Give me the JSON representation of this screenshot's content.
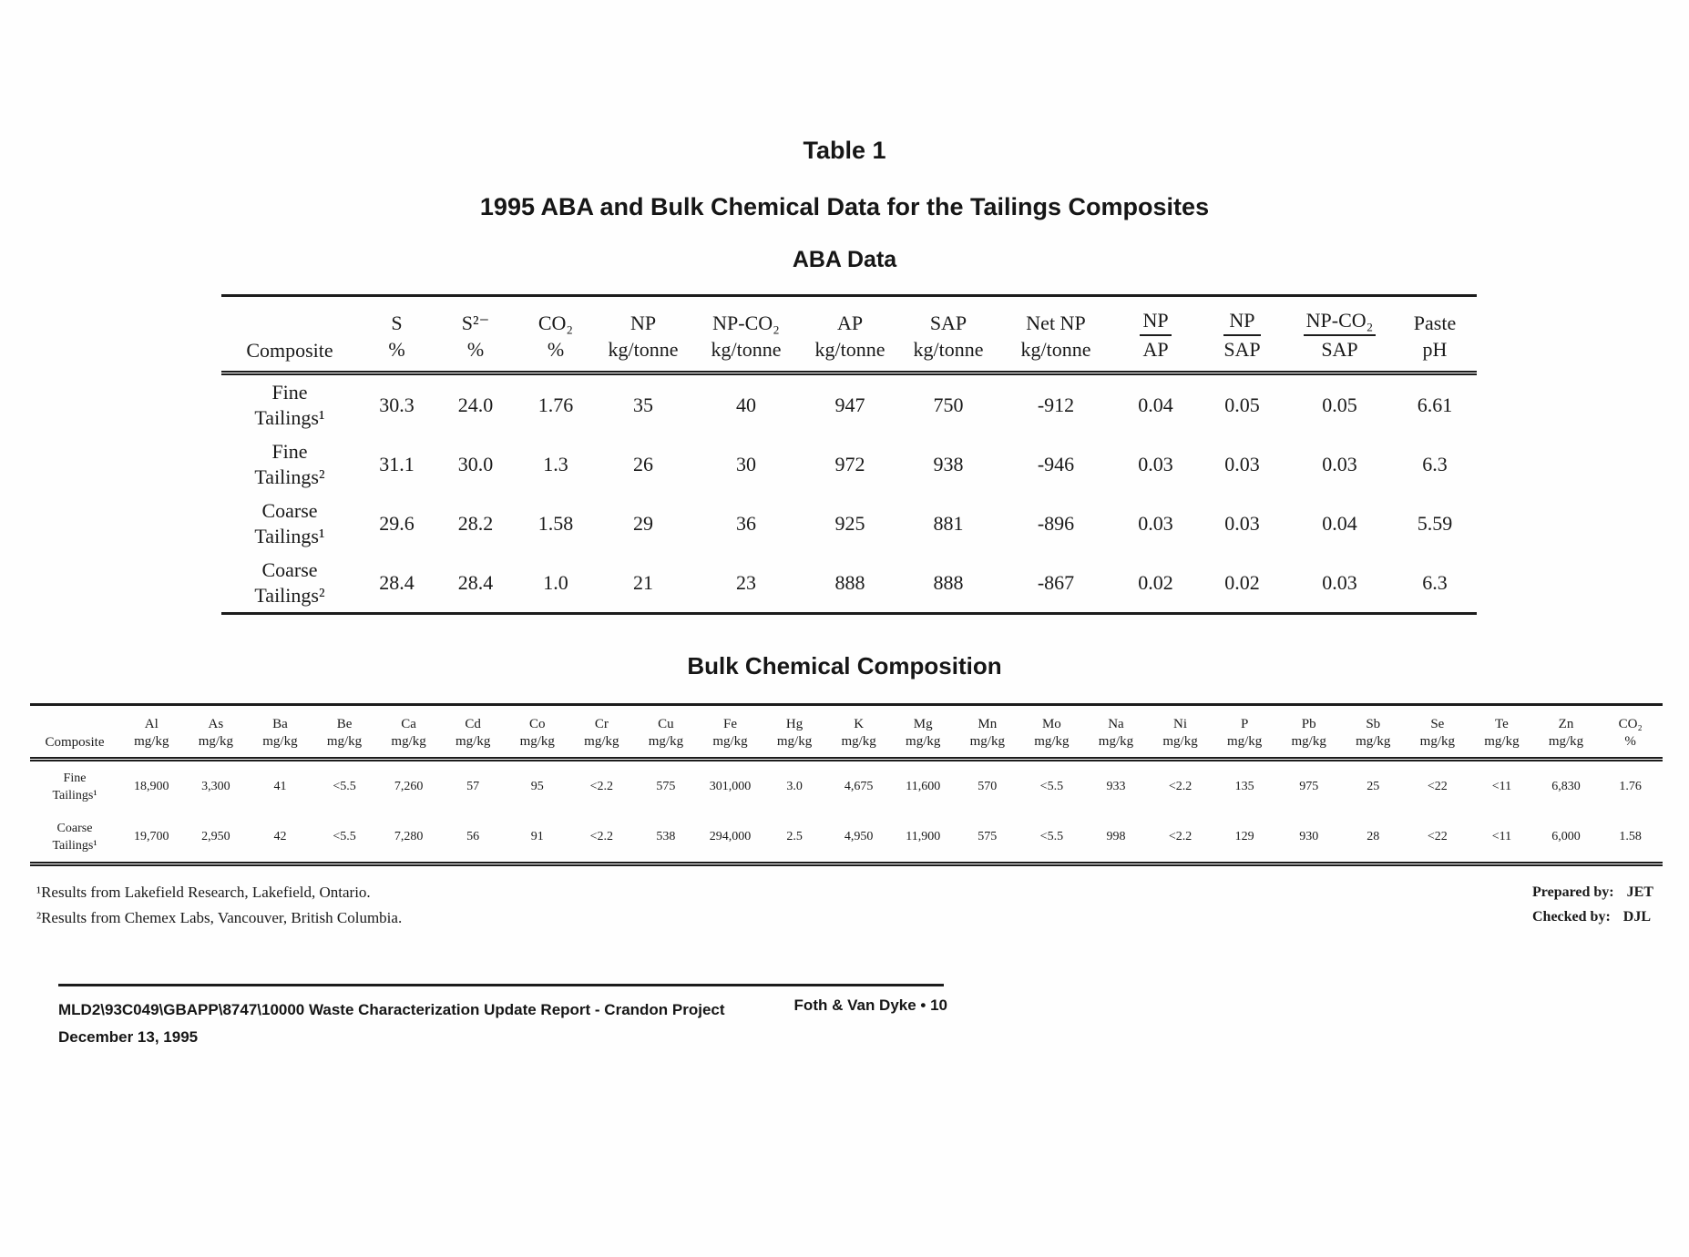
{
  "titles": {
    "table_label": "Table 1",
    "main": "1995 ABA and Bulk Chemical Data for the Tailings Composites",
    "aba_heading": "ABA Data",
    "bulk_heading": "Bulk Chemical Composition"
  },
  "aba_table": {
    "composite_header": "Composite",
    "columns": [
      {
        "name": "S",
        "unit": "%"
      },
      {
        "name": "S²⁻",
        "unit": "%"
      },
      {
        "name": "CO₂",
        "unit": "%"
      },
      {
        "name": "NP",
        "unit": "kg/tonne"
      },
      {
        "name": "NP-CO₂",
        "unit": "kg/tonne"
      },
      {
        "name": "AP",
        "unit": "kg/tonne"
      },
      {
        "name": "SAP",
        "unit": "kg/tonne"
      },
      {
        "name": "Net NP",
        "unit": "kg/tonne"
      },
      {
        "frac_num": "NP",
        "frac_den": "AP"
      },
      {
        "frac_num": "NP",
        "frac_den": "SAP"
      },
      {
        "frac_num": "NP-CO₂",
        "frac_den": "SAP"
      },
      {
        "name": "Paste",
        "unit": "pH"
      }
    ],
    "rows": [
      {
        "label": [
          "Fine",
          "Tailings¹"
        ],
        "values": [
          "30.3",
          "24.0",
          "1.76",
          "35",
          "40",
          "947",
          "750",
          "-912",
          "0.04",
          "0.05",
          "0.05",
          "6.61"
        ]
      },
      {
        "label": [
          "Fine",
          "Tailings²"
        ],
        "values": [
          "31.1",
          "30.0",
          "1.3",
          "26",
          "30",
          "972",
          "938",
          "-946",
          "0.03",
          "0.03",
          "0.03",
          "6.3"
        ]
      },
      {
        "label": [
          "Coarse",
          "Tailings¹"
        ],
        "values": [
          "29.6",
          "28.2",
          "1.58",
          "29",
          "36",
          "925",
          "881",
          "-896",
          "0.03",
          "0.03",
          "0.04",
          "5.59"
        ]
      },
      {
        "label": [
          "Coarse",
          "Tailings²"
        ],
        "values": [
          "28.4",
          "28.4",
          "1.0",
          "21",
          "23",
          "888",
          "888",
          "-867",
          "0.02",
          "0.02",
          "0.03",
          "6.3"
        ]
      }
    ]
  },
  "bulk_table": {
    "composite_header": "Composite",
    "columns": [
      {
        "name": "Al",
        "unit": "mg/kg"
      },
      {
        "name": "As",
        "unit": "mg/kg"
      },
      {
        "name": "Ba",
        "unit": "mg/kg"
      },
      {
        "name": "Be",
        "unit": "mg/kg"
      },
      {
        "name": "Ca",
        "unit": "mg/kg"
      },
      {
        "name": "Cd",
        "unit": "mg/kg"
      },
      {
        "name": "Co",
        "unit": "mg/kg"
      },
      {
        "name": "Cr",
        "unit": "mg/kg"
      },
      {
        "name": "Cu",
        "unit": "mg/kg"
      },
      {
        "name": "Fe",
        "unit": "mg/kg"
      },
      {
        "name": "Hg",
        "unit": "mg/kg"
      },
      {
        "name": "K",
        "unit": "mg/kg"
      },
      {
        "name": "Mg",
        "unit": "mg/kg"
      },
      {
        "name": "Mn",
        "unit": "mg/kg"
      },
      {
        "name": "Mo",
        "unit": "mg/kg"
      },
      {
        "name": "Na",
        "unit": "mg/kg"
      },
      {
        "name": "Ni",
        "unit": "mg/kg"
      },
      {
        "name": "P",
        "unit": "mg/kg"
      },
      {
        "name": "Pb",
        "unit": "mg/kg"
      },
      {
        "name": "Sb",
        "unit": "mg/kg"
      },
      {
        "name": "Se",
        "unit": "mg/kg"
      },
      {
        "name": "Te",
        "unit": "mg/kg"
      },
      {
        "name": "Zn",
        "unit": "mg/kg"
      },
      {
        "name": "CO₂",
        "unit": "%"
      }
    ],
    "rows": [
      {
        "label": [
          "Fine",
          "Tailings¹"
        ],
        "values": [
          "18,900",
          "3,300",
          "41",
          "<5.5",
          "7,260",
          "57",
          "95",
          "<2.2",
          "575",
          "301,000",
          "3.0",
          "4,675",
          "11,600",
          "570",
          "<5.5",
          "933",
          "<2.2",
          "135",
          "975",
          "25",
          "<22",
          "<11",
          "6,830",
          "1.76"
        ]
      },
      {
        "label": [
          "Coarse",
          "Tailings¹"
        ],
        "values": [
          "19,700",
          "2,950",
          "42",
          "<5.5",
          "7,280",
          "56",
          "91",
          "<2.2",
          "538",
          "294,000",
          "2.5",
          "4,950",
          "11,900",
          "575",
          "<5.5",
          "998",
          "<2.2",
          "129",
          "930",
          "28",
          "<22",
          "<11",
          "6,000",
          "1.58"
        ]
      }
    ]
  },
  "footnotes": [
    "¹Results from Lakefield Research, Lakefield, Ontario.",
    "²Results from Chemex Labs, Vancouver, British Columbia."
  ],
  "credits": {
    "lines": [
      {
        "label": "Prepared by:",
        "value": "JET"
      },
      {
        "label": "Checked by:",
        "value": "DJL"
      }
    ]
  },
  "footer": {
    "doc_ref": "MLD2\\93C049\\GBAPP\\8747\\10000  Waste Characterization Update Report - Crandon Project",
    "date": "December 13, 1995",
    "page_ref": "Foth & Van Dyke • 10"
  }
}
